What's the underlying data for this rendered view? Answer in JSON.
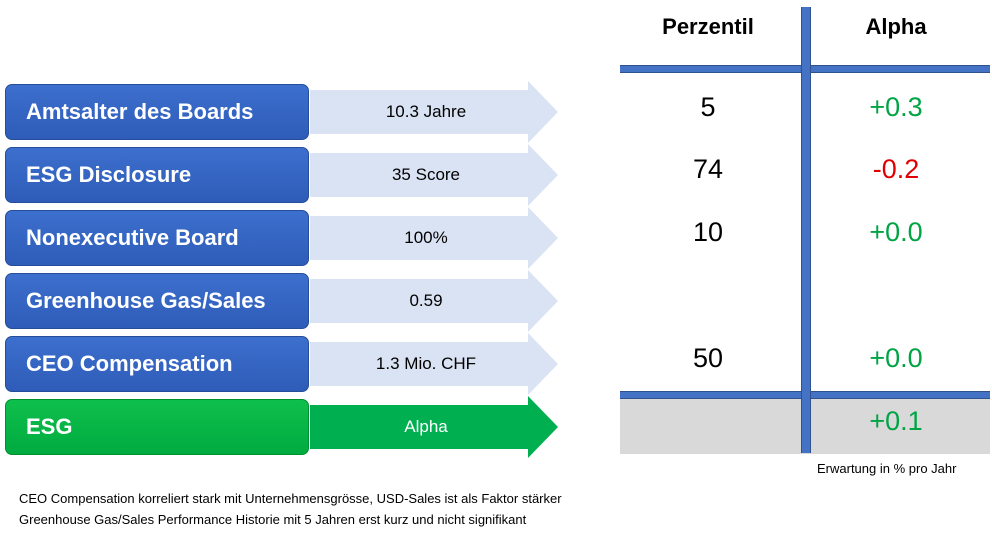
{
  "headers": {
    "perzentil": "Perzentil",
    "alpha": "Alpha"
  },
  "colors": {
    "blue_box": "#2e5cb8",
    "green_box": "#00ab40",
    "arrow_blue": "#dae3f3",
    "arrow_green": "#00b050",
    "positive": "#00a445",
    "negative": "#e00000",
    "table_line": "#4472c4",
    "total_bg": "#d9d9d9"
  },
  "rows": [
    {
      "label": "Amtsalter des Boards",
      "value": "10.3 Jahre",
      "percentile": "5",
      "alpha": "+0.3"
    },
    {
      "label": "ESG Disclosure",
      "value": "35 Score",
      "percentile": "74",
      "alpha": "-0.2"
    },
    {
      "label": "Nonexecutive Board",
      "value": "100%",
      "percentile": "10",
      "alpha": "+0.0"
    },
    {
      "label": "Greenhouse Gas/Sales",
      "value": "0.59",
      "percentile": "",
      "alpha": ""
    },
    {
      "label": "CEO Compensation",
      "value": "1.3 Mio. CHF",
      "percentile": "50",
      "alpha": "+0.0"
    }
  ],
  "total": {
    "label": "ESG",
    "value": "Alpha",
    "alpha": "+0.1"
  },
  "unit_note": "Erwartung in % pro Jahr",
  "notes": [
    "CEO Compensation korreliert stark mit Unternehmensgrösse, USD-Sales ist als Faktor stärker",
    "Greenhouse Gas/Sales Performance Historie mit 5 Jahren erst kurz und nicht signifikant"
  ]
}
